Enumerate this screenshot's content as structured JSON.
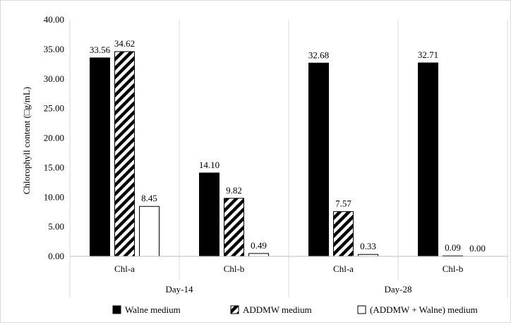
{
  "chart_data": {
    "type": "bar",
    "title": "",
    "ylabel": "Chlorophyll content (□g/mL)",
    "ylim": [
      0,
      40
    ],
    "ytick_step": 5,
    "ytick_labels": [
      "0.00",
      "5.00",
      "10.00",
      "15.00",
      "20.00",
      "25.00",
      "30.00",
      "35.00",
      "40.00"
    ],
    "grid": "vertical separators between categories",
    "legend_position": "bottom",
    "groups": [
      {
        "label": "Day-14",
        "categories": [
          "Chl-a",
          "Chl-b"
        ]
      },
      {
        "label": "Day-28",
        "categories": [
          "Chl-a",
          "Chl-b"
        ]
      }
    ],
    "categories": [
      "Chl-a",
      "Chl-b",
      "Chl-a",
      "Chl-b"
    ],
    "series": [
      {
        "name": "Walne medium",
        "fill": "solid-black",
        "values": [
          33.56,
          14.1,
          32.68,
          32.71
        ],
        "labels": [
          "33.56",
          "14.10",
          "32.68",
          "32.71"
        ]
      },
      {
        "name": "ADDMW medium",
        "fill": "diagonal-hatch",
        "values": [
          34.62,
          9.82,
          7.57,
          0.09
        ],
        "labels": [
          "34.62",
          "9.82",
          "7.57",
          "0.09"
        ]
      },
      {
        "name": "(ADDMW + Walne) medium",
        "fill": "white-outline",
        "values": [
          8.45,
          0.49,
          0.33,
          0.0
        ],
        "labels": [
          "8.45",
          "0.49",
          "0.33",
          "0.00"
        ]
      }
    ],
    "colors": {
      "bar": "#000000",
      "grid": "#d9d9d9",
      "axis": "#bfbfbf"
    }
  }
}
